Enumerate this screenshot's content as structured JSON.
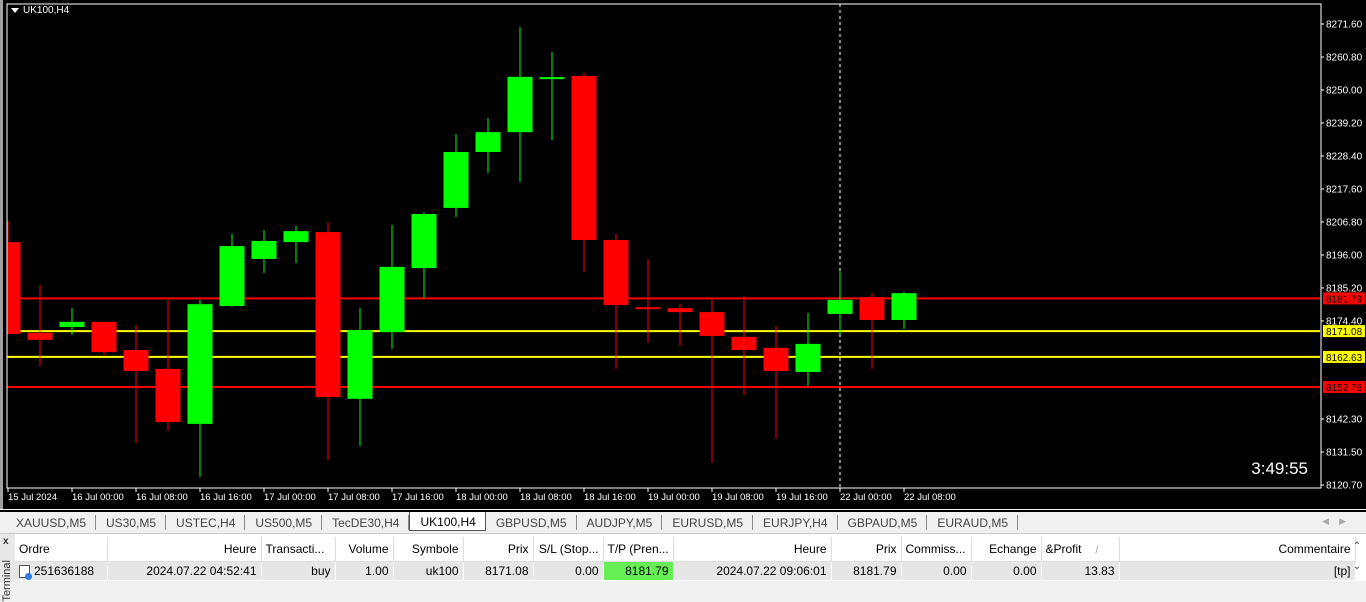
{
  "chart": {
    "symbol_title": "UK100,H4",
    "timer": "3:49:55",
    "colors": {
      "bull": "#00ff00",
      "bear": "#ff0000",
      "background": "#000000",
      "axis_text": "#ffffff",
      "level_red": "#ff0000",
      "level_yellow": "#ffff00"
    },
    "price_ticks": [
      "8271.60",
      "8260.80",
      "8250.00",
      "8239.20",
      "8228.40",
      "8217.60",
      "8206.80",
      "8196.00",
      "8185.20",
      "8174.40",
      "8142.30",
      "8131.50",
      "8120.70"
    ],
    "levels": [
      {
        "price": "8181.79",
        "color": "#ff0000"
      },
      {
        "price": "8171.08",
        "color": "#ffff00"
      },
      {
        "price": "8162.63",
        "color": "#ffff00"
      },
      {
        "price": "8152.76",
        "color": "#ff0000"
      }
    ],
    "time_labels": [
      "15 Jul 2024",
      "16 Jul 00:00",
      "16 Jul 08:00",
      "16 Jul 16:00",
      "17 Jul 00:00",
      "17 Jul 08:00",
      "17 Jul 16:00",
      "18 Jul 00:00",
      "18 Jul 08:00",
      "18 Jul 16:00",
      "19 Jul 00:00",
      "19 Jul 08:00",
      "19 Jul 16:00",
      "22 Jul 00:00",
      "22 Jul 08:00"
    ],
    "crosshair_time": "22 Jul 00:00"
  },
  "chart_data": {
    "type": "candlestick",
    "timeframe": "H4",
    "ylim": [
      8120.7,
      8271.6
    ],
    "grid": false,
    "ohlc": [
      [
        8200.2,
        8207.1,
        8170.0,
        8170.1
      ],
      [
        8170.5,
        8186.2,
        8159.7,
        8168.2
      ],
      [
        8172.4,
        8178.6,
        8169.8,
        8174.1
      ],
      [
        8174.1,
        8174.1,
        8163.3,
        8164.2
      ],
      [
        8164.9,
        8173.1,
        8134.4,
        8158.0
      ],
      [
        8158.7,
        8181.3,
        8138.4,
        8141.3
      ],
      [
        8140.7,
        8181.3,
        8123.3,
        8179.9
      ],
      [
        8179.3,
        8202.9,
        8179.0,
        8198.9
      ],
      [
        8194.7,
        8204.2,
        8190.1,
        8200.6
      ],
      [
        8200.2,
        8205.5,
        8193.4,
        8203.8
      ],
      [
        8203.5,
        8206.8,
        8128.9,
        8149.5
      ],
      [
        8148.9,
        8178.6,
        8133.5,
        8171.4
      ],
      [
        8170.8,
        8205.8,
        8165.2,
        8192.1
      ],
      [
        8191.7,
        8210.0,
        8181.9,
        8209.4
      ],
      [
        8211.4,
        8235.6,
        8208.4,
        8229.7
      ],
      [
        8229.7,
        8240.8,
        8222.8,
        8236.2
      ],
      [
        8236.2,
        8270.6,
        8219.9,
        8254.3
      ],
      [
        8254.0,
        8262.4,
        8233.6,
        8254.2
      ],
      [
        8254.6,
        8255.6,
        8190.4,
        8200.9
      ],
      [
        8200.9,
        8202.9,
        8158.7,
        8179.6
      ],
      [
        8178.9,
        8194.6,
        8167.2,
        8178.3
      ],
      [
        8178.6,
        8180.0,
        8166.2,
        8177.3
      ],
      [
        8177.3,
        8181.6,
        8127.9,
        8169.5
      ],
      [
        8169.2,
        8182.6,
        8150.2,
        8164.9
      ],
      [
        8165.6,
        8172.7,
        8135.8,
        8158.0
      ],
      [
        8157.7,
        8177.0,
        8153.1,
        8166.9
      ],
      [
        8176.7,
        8190.7,
        8170.0,
        8181.3
      ],
      [
        8182.2,
        8183.5,
        8158.7,
        8174.7
      ],
      [
        8174.7,
        8183.9,
        8171.8,
        8183.5
      ]
    ]
  },
  "tabs": [
    "XAUUSD,M5",
    "US30,M5",
    "USTEC,H4",
    "US500,M5",
    "TecDE30,H4",
    "UK100,H4",
    "GBPUSD,M5",
    "AUDJPY,M5",
    "EURUSD,M5",
    "EURJPY,H4",
    "GBPAUD,M5",
    "EURAUD,M5"
  ],
  "active_tab": "UK100,H4",
  "terminal": {
    "side_label": "Terminal",
    "close": "x",
    "columns": [
      "Ordre",
      "Heure",
      "Transacti...",
      "Volume",
      "Symbole",
      "Prix",
      "S/L (Stop...",
      "T/P (Pren...",
      "Heure",
      "Prix",
      "Commiss...",
      "Echange",
      "&Profit",
      "Commentaire"
    ],
    "sort_mark": "/",
    "row": [
      "251636188",
      "2024.07.22 04:52:41",
      "buy",
      "1.00",
      "uk100",
      "8171.08",
      "0.00",
      "8181.79",
      "2024.07.22 09:06:01",
      "8181.79",
      "0.00",
      "0.00",
      "13.83",
      "[tp]"
    ]
  }
}
